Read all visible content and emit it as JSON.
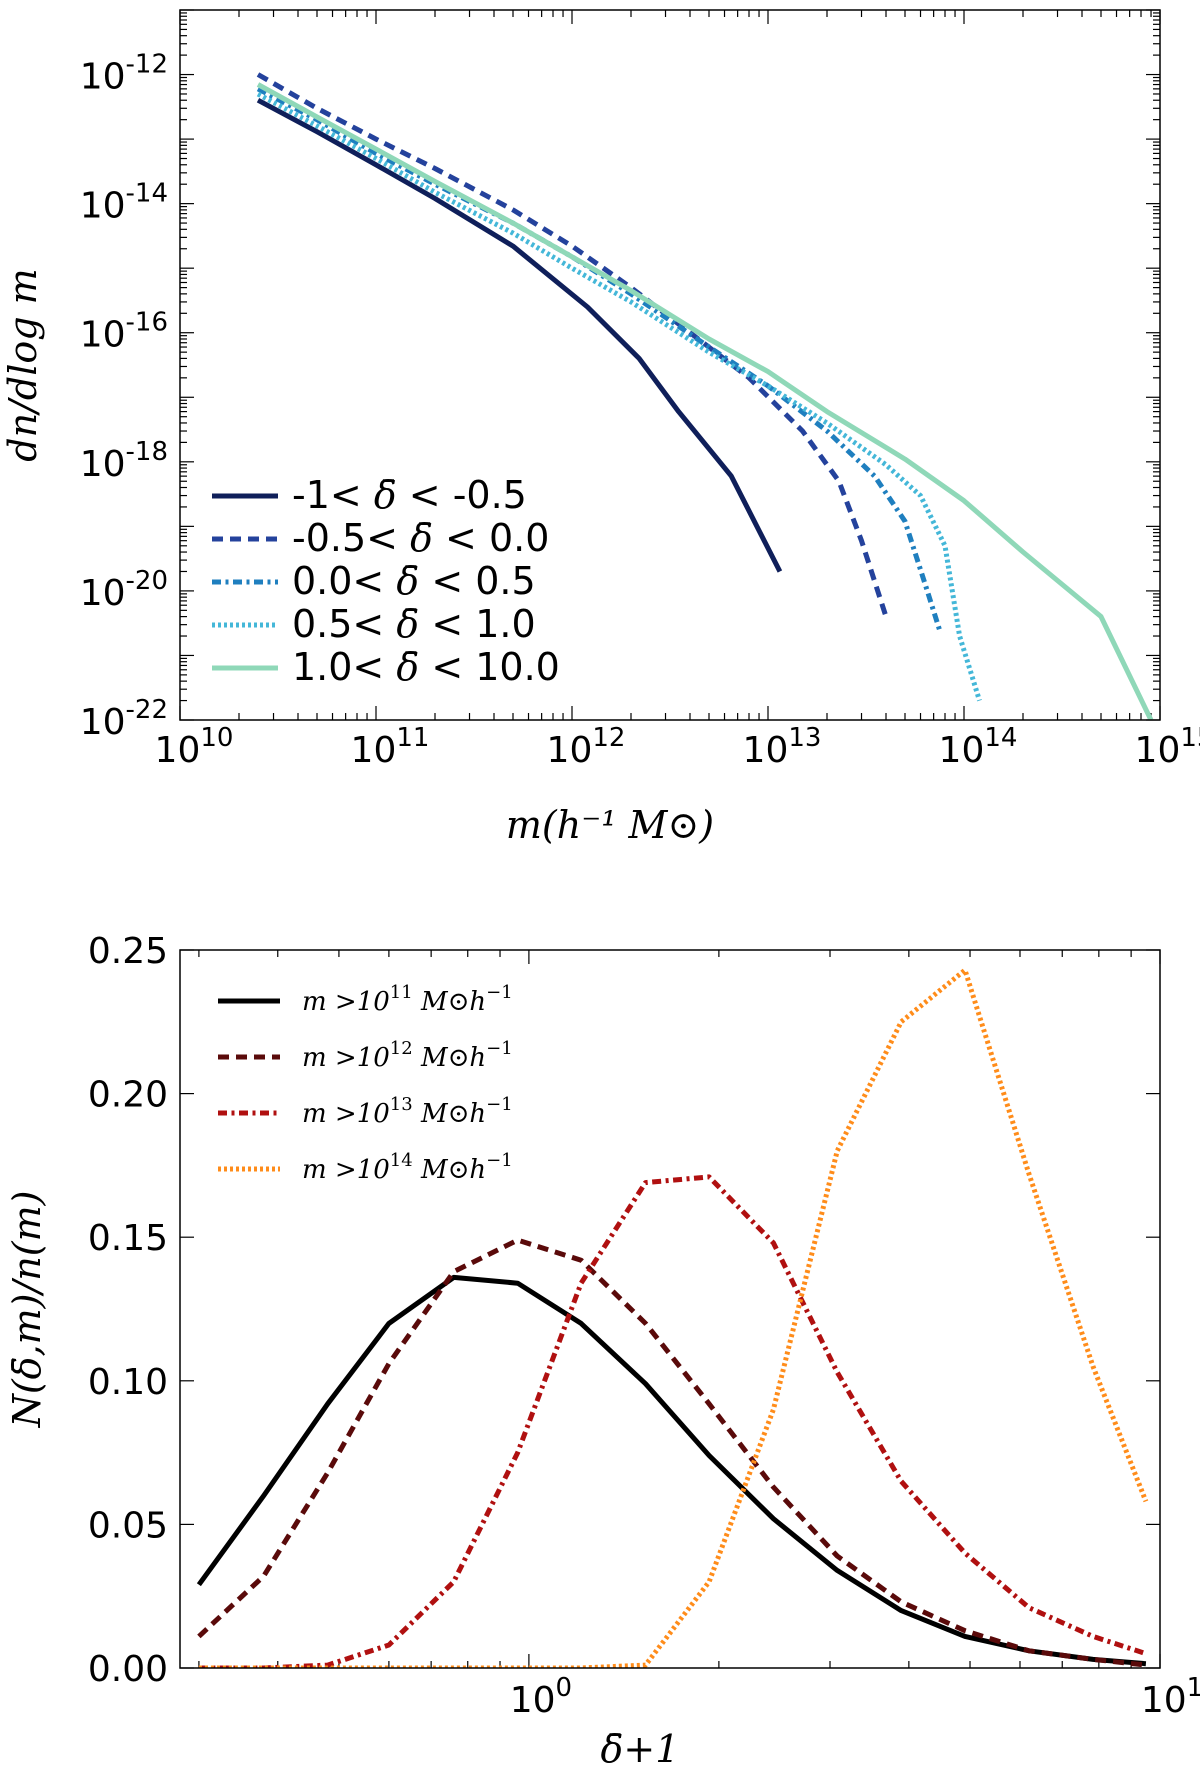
{
  "chart_data": [
    {
      "type": "line",
      "xscale": "log",
      "yscale": "log",
      "xlabel": "m(h⁻¹ M⊙)",
      "ylabel": "dn/dlog m",
      "xlim": [
        10000000000.0,
        1000000000000000.0
      ],
      "ylim": [
        1e-22,
        1e-11
      ],
      "xticks": [
        {
          "base": "10",
          "exp": "10"
        },
        {
          "base": "10",
          "exp": "11"
        },
        {
          "base": "10",
          "exp": "12"
        },
        {
          "base": "10",
          "exp": "13"
        },
        {
          "base": "10",
          "exp": "14"
        },
        {
          "base": "10",
          "exp": "15"
        }
      ],
      "yticks": [
        {
          "base": "10",
          "exp": "-22"
        },
        {
          "base": "10",
          "exp": "-20"
        },
        {
          "base": "10",
          "exp": "-18"
        },
        {
          "base": "10",
          "exp": "-16"
        },
        {
          "base": "10",
          "exp": "-14"
        },
        {
          "base": "10",
          "exp": "-12"
        }
      ],
      "legend_position": "lower-left",
      "grid": false,
      "series": [
        {
          "name": "-1< δ̄ < -0.5",
          "color": "#0f1f5a",
          "style": "solid",
          "x": [
            25000000000.0,
            50000000000.0,
            100000000000.0,
            200000000000.0,
            500000000000.0,
            1200000000000.0,
            2200000000000.0,
            3500000000000.0,
            6500000000000.0,
            11500000000000.0
          ],
          "y": [
            4e-13,
            1.3e-13,
            4e-14,
            1.2e-14,
            2.2e-15,
            2.5e-16,
            4e-17,
            6e-18,
            6e-19,
            2e-20
          ]
        },
        {
          "name": "-0.5< δ̄ < 0.0",
          "color": "#24429c",
          "style": "dashed",
          "x": [
            25000000000.0,
            50000000000.0,
            100000000000.0,
            200000000000.0,
            500000000000.0,
            1000000000000.0,
            2000000000000.0,
            4000000000000.0,
            8000000000000.0,
            15000000000000.0,
            23000000000000.0,
            30000000000000.0,
            40000000000000.0
          ],
          "y": [
            1e-12,
            3e-13,
            1e-13,
            3.5e-14,
            8e-15,
            2.2e-15,
            5e-16,
            1e-16,
            2e-17,
            3e-18,
            5e-19,
            6e-20,
            4e-21
          ]
        },
        {
          "name": "0.0< δ̄ < 0.5",
          "color": "#1f7fbf",
          "style": "dashdot",
          "x": [
            25000000000.0,
            50000000000.0,
            100000000000.0,
            200000000000.0,
            500000000000.0,
            1000000000000.0,
            2000000000000.0,
            5000000000000.0,
            10000000000000.0,
            20000000000000.0,
            35000000000000.0,
            50000000000000.0,
            65000000000000.0,
            75000000000000.0
          ],
          "y": [
            6e-13,
            2e-13,
            6e-14,
            2e-14,
            5e-15,
            1.5e-15,
            4e-16,
            6e-17,
            1.5e-17,
            3e-18,
            6e-19,
            1.2e-19,
            1e-20,
            2.5e-21
          ]
        },
        {
          "name": "0.5< δ̄ < 1.0",
          "color": "#44b7d8",
          "style": "dotted",
          "x": [
            25000000000.0,
            50000000000.0,
            100000000000.0,
            200000000000.0,
            500000000000.0,
            1000000000000.0,
            2000000000000.0,
            5000000000000.0,
            10000000000000.0,
            20000000000000.0,
            40000000000000.0,
            60000000000000.0,
            80000000000000.0,
            95000000000000.0,
            120000000000000.0
          ],
          "y": [
            5e-13,
            1.6e-13,
            5e-14,
            1.5e-14,
            3.5e-15,
            1e-15,
            3e-16,
            5e-17,
            1.5e-17,
            4e-18,
            9e-19,
            3e-19,
            5e-20,
            2e-21,
            2e-22
          ]
        },
        {
          "name": "1.0< δ̄ < 10.0",
          "color": "#8fd8b8",
          "style": "solid",
          "x": [
            25000000000.0,
            50000000000.0,
            100000000000.0,
            200000000000.0,
            500000000000.0,
            1000000000000.0,
            2000000000000.0,
            5000000000000.0,
            10000000000000.0,
            20000000000000.0,
            50000000000000.0,
            100000000000000.0,
            200000000000000.0,
            500000000000000.0,
            900000000000000.0
          ],
          "y": [
            7e-13,
            2.2e-13,
            7e-14,
            2.2e-14,
            5e-15,
            1.5e-15,
            4.5e-16,
            8e-17,
            2.5e-17,
            6e-18,
            1.1e-18,
            2.5e-19,
            4e-20,
            4e-21,
            1e-22
          ]
        }
      ],
      "legend_labels": [
        {
          "pre": "-1< ",
          "post": " < -0.5"
        },
        {
          "pre": "-0.5< ",
          "post": " < 0.0"
        },
        {
          "pre": "0.0< ",
          "post": " < 0.5"
        },
        {
          "pre": "0.5< ",
          "post": " < 1.0"
        },
        {
          "pre": "1.0< ",
          "post": " < 10.0"
        }
      ]
    },
    {
      "type": "line",
      "xscale": "log",
      "yscale": "linear",
      "xlabel": "δ̄+1",
      "ylabel": "N(δ̄,m)/n(m)",
      "xlim": [
        0.1,
        10
      ],
      "ylim": [
        0,
        0.25
      ],
      "xticks": [
        {
          "base": "10",
          "exp": "0",
          "value": 1
        },
        {
          "base": "10",
          "exp": "1",
          "value": 10
        }
      ],
      "yticks": [
        "0.00",
        "0.05",
        "0.10",
        "0.15",
        "0.20",
        "0.25"
      ],
      "legend_position": "upper-left",
      "grid": false,
      "x": [
        0.3,
        0.38,
        0.48,
        0.6,
        0.76,
        0.96,
        1.21,
        1.53,
        1.93,
        2.44,
        3.08,
        3.89,
        4.91,
        6.2,
        7.83,
        9.5
      ],
      "series": [
        {
          "name": "m >10^11 M⊙h^-1",
          "exp": "11",
          "color": "#000000",
          "style": "solid",
          "values": [
            0.029,
            0.06,
            0.092,
            0.12,
            0.136,
            0.134,
            0.12,
            0.099,
            0.074,
            0.052,
            0.034,
            0.02,
            0.011,
            0.006,
            0.003,
            0.0015
          ]
        },
        {
          "name": "m >10^12 M⊙h^-1",
          "exp": "12",
          "color": "#5a0a0a",
          "style": "dashed",
          "values": [
            0.011,
            0.032,
            0.068,
            0.106,
            0.138,
            0.149,
            0.142,
            0.12,
            0.092,
            0.063,
            0.039,
            0.023,
            0.013,
            0.006,
            0.003,
            0.001
          ]
        },
        {
          "name": "m >10^13 M⊙h^-1",
          "exp": "13",
          "color": "#b01010",
          "style": "dashdot",
          "values": [
            0.0,
            0.0,
            0.001,
            0.008,
            0.03,
            0.075,
            0.134,
            0.169,
            0.171,
            0.148,
            0.103,
            0.065,
            0.04,
            0.021,
            0.011,
            0.005
          ]
        },
        {
          "name": "m >10^14 M⊙h^-1",
          "exp": "14",
          "color": "#ff8c1a",
          "style": "dotted",
          "values": [
            0.0,
            0.0,
            0.0,
            0.0,
            0.0,
            0.0,
            0.0,
            0.001,
            0.03,
            0.09,
            0.18,
            0.225,
            0.243,
            0.172,
            0.105,
            0.058
          ]
        }
      ]
    }
  ]
}
